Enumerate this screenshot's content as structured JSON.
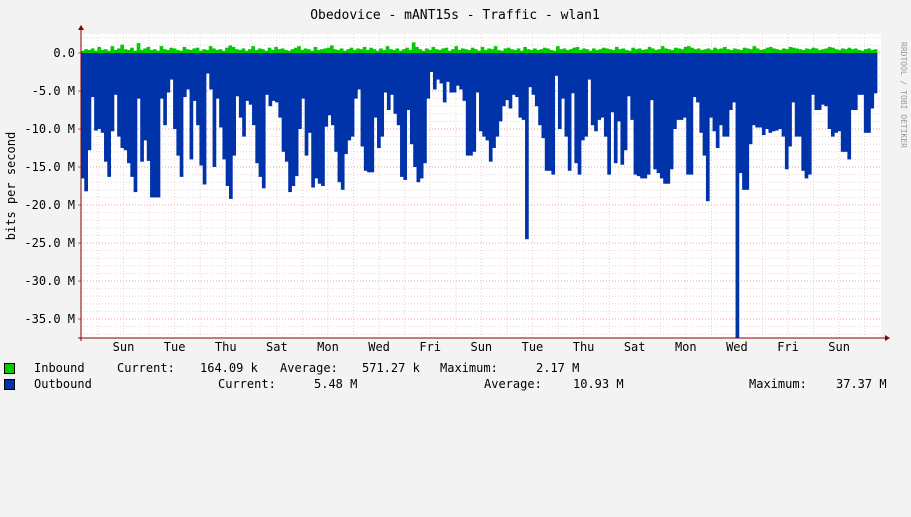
{
  "chart_data": {
    "type": "area",
    "title": "Obedovice - mANT15s - Traffic - wlan1",
    "ylabel": "bits per second",
    "watermark": "RRDTOOL / TOBI OETIKER",
    "ylim": [
      -37500000,
      2500000
    ],
    "yticks": [
      {
        "value": 0,
        "label": "0.0"
      },
      {
        "value": -5000000,
        "label": "-5.0 M"
      },
      {
        "value": -10000000,
        "label": "-10.0 M"
      },
      {
        "value": -15000000,
        "label": "-15.0 M"
      },
      {
        "value": -20000000,
        "label": "-20.0 M"
      },
      {
        "value": -25000000,
        "label": "-25.0 M"
      },
      {
        "value": -30000000,
        "label": "-30.0 M"
      },
      {
        "value": -35000000,
        "label": "-35.0 M"
      }
    ],
    "xlabels": [
      "Sun",
      "Tue",
      "Thu",
      "Sat",
      "Mon",
      "Wed",
      "Fri",
      "Sun",
      "Tue",
      "Thu",
      "Sat",
      "Mon",
      "Wed",
      "Fri",
      "Sun"
    ],
    "grid": true,
    "colors": {
      "inbound": "#00cc00",
      "outbound": "#0033aa",
      "grid": "#ff9999",
      "axis": "#880000"
    },
    "series": [
      {
        "name": "Inbound",
        "values": [
          0.3,
          0.5,
          0.4,
          0.6,
          0.3,
          0.8,
          0.4,
          0.5,
          0.3,
          0.9,
          0.4,
          0.6,
          1.1,
          0.5,
          0.4,
          0.7,
          0.3,
          1.3,
          0.4,
          0.6,
          0.8,
          0.4,
          0.5,
          0.3,
          0.9,
          0.5,
          0.4,
          0.7,
          0.6,
          0.4,
          0.3,
          0.8,
          0.5,
          0.4,
          0.6,
          0.7,
          0.3,
          0.5,
          0.4,
          0.9,
          0.6,
          0.4,
          0.5,
          0.3,
          0.7,
          1.0,
          0.8,
          0.5,
          0.4,
          0.6,
          0.3,
          0.5,
          0.9,
          0.4,
          0.6,
          0.5,
          0.3,
          0.7,
          0.4,
          0.8,
          0.5,
          0.6,
          0.4,
          0.3,
          0.5,
          0.7,
          0.9,
          0.4,
          0.6,
          0.5,
          0.3,
          0.8,
          0.4,
          0.5,
          0.6,
          0.7,
          1.0,
          0.5,
          0.4,
          0.6,
          0.3,
          0.5,
          0.7,
          0.4,
          0.6,
          0.5,
          0.8,
          0.4,
          0.7,
          0.5,
          0.3,
          0.6,
          0.4,
          0.9,
          0.5,
          0.4,
          0.6,
          0.3,
          0.5,
          0.7,
          0.4,
          1.4,
          0.8,
          0.5,
          0.3,
          0.6,
          0.4,
          0.8,
          0.5,
          0.4,
          0.6,
          0.7,
          0.3,
          0.5,
          0.9,
          0.4,
          0.6,
          0.5,
          0.4,
          0.7,
          0.5,
          0.3,
          0.8,
          0.4,
          0.6,
          0.5,
          0.9,
          0.4,
          0.3,
          0.6,
          0.7,
          0.5,
          0.4,
          0.6,
          0.3,
          0.8,
          0.5,
          0.4,
          0.6,
          0.4,
          0.5,
          0.7,
          0.6,
          0.4,
          0.3,
          0.9,
          0.5,
          0.6,
          0.4,
          0.5,
          0.7,
          0.8,
          0.4,
          0.6,
          0.5,
          0.3,
          0.6,
          0.4,
          0.5,
          0.7,
          0.6,
          0.5,
          0.4,
          0.8,
          0.5,
          0.6,
          0.4,
          0.3,
          0.7,
          0.5,
          0.6,
          0.4,
          0.5,
          0.8,
          0.6,
          0.4,
          0.5,
          0.9,
          0.6,
          0.5,
          0.4,
          0.7,
          0.6,
          0.5,
          0.8,
          0.9,
          0.7,
          0.5,
          0.6,
          0.4,
          0.5,
          0.6,
          0.4,
          0.7,
          0.5,
          0.6,
          0.8,
          0.5,
          0.4,
          0.6,
          0.5,
          0.4,
          0.7,
          0.6,
          0.5,
          0.9,
          0.6,
          0.4,
          0.5,
          0.7,
          0.8,
          0.6,
          0.5,
          0.4,
          0.6,
          0.5,
          0.8,
          0.7,
          0.6,
          0.5,
          0.4,
          0.6,
          0.5,
          0.7,
          0.6,
          0.4,
          0.5,
          0.6,
          0.8,
          0.7,
          0.5,
          0.4,
          0.6,
          0.5,
          0.7,
          0.5,
          0.6,
          0.4,
          0.3,
          0.5,
          0.6,
          0.4,
          0.5
        ]
      },
      {
        "name": "Outbound",
        "values": [
          -16.5,
          -18.2,
          -12.8,
          -5.8,
          -10.2,
          -10.0,
          -10.5,
          -14.3,
          -16.3,
          -10.3,
          -5.5,
          -11.0,
          -12.5,
          -12.8,
          -14.5,
          -16.3,
          -18.3,
          -6.0,
          -14.3,
          -11.5,
          -14.2,
          -19.0,
          -19.0,
          -19.0,
          -6.0,
          -9.5,
          -5.2,
          -3.5,
          -10.0,
          -13.5,
          -16.3,
          -5.8,
          -4.8,
          -14.0,
          -6.3,
          -9.5,
          -14.8,
          -17.3,
          -2.7,
          -4.8,
          -15.0,
          -6.0,
          -9.8,
          -14.0,
          -17.5,
          -19.2,
          -13.5,
          -5.7,
          -8.5,
          -11.0,
          -6.3,
          -6.8,
          -9.5,
          -14.5,
          -16.3,
          -17.8,
          -5.5,
          -7.0,
          -6.3,
          -6.5,
          -8.5,
          -13.0,
          -14.3,
          -18.3,
          -17.5,
          -16.2,
          -10.0,
          -6.0,
          -13.5,
          -10.5,
          -17.7,
          -16.5,
          -17.2,
          -17.5,
          -9.7,
          -8.2,
          -9.5,
          -13.0,
          -17.0,
          -18.0,
          -13.3,
          -11.5,
          -11.0,
          -6.0,
          -4.8,
          -12.3,
          -15.5,
          -15.7,
          -15.7,
          -8.5,
          -12.5,
          -11.0,
          -5.2,
          -7.5,
          -5.5,
          -8.0,
          -9.5,
          -16.3,
          -16.7,
          -7.5,
          -12.0,
          -15.0,
          -17.0,
          -16.5,
          -14.5,
          -6.0,
          -2.5,
          -4.8,
          -3.5,
          -4.0,
          -6.5,
          -3.8,
          -5.2,
          -5.2,
          -4.3,
          -4.8,
          -6.3,
          -13.5,
          -13.5,
          -13.0,
          -5.2,
          -10.3,
          -11.0,
          -11.5,
          -14.3,
          -12.5,
          -11.0,
          -9.0,
          -7.0,
          -6.2,
          -7.3,
          -5.5,
          -5.8,
          -8.5,
          -8.8,
          -24.5,
          -4.5,
          -5.5,
          -7.0,
          -9.5,
          -11.2,
          -15.5,
          -15.5,
          -16.0,
          -3.0,
          -10.0,
          -6.0,
          -11.0,
          -15.5,
          -5.3,
          -14.5,
          -16.0,
          -11.5,
          -11.0,
          -3.5,
          -9.5,
          -10.3,
          -8.8,
          -8.5,
          -11.0,
          -16.0,
          -7.8,
          -14.5,
          -9.0,
          -14.7,
          -12.8,
          -5.7,
          -8.8,
          -16.0,
          -16.2,
          -16.5,
          -16.5,
          -16.0,
          -6.2,
          -15.3,
          -15.8,
          -16.5,
          -17.2,
          -17.2,
          -15.3,
          -10.0,
          -8.8,
          -8.8,
          -8.5,
          -16.0,
          -16.0,
          -5.8,
          -6.5,
          -10.5,
          -13.5,
          -19.5,
          -8.5,
          -10.3,
          -12.5,
          -9.5,
          -11.0,
          -11.0,
          -7.5,
          -6.5,
          -37.5,
          -15.8,
          -18.0,
          -18.0,
          -12.0,
          -9.5,
          -9.8,
          -9.8,
          -10.8,
          -10.0,
          -10.5,
          -10.3,
          -10.2,
          -10.0,
          -11.0,
          -15.3,
          -12.3,
          -6.5,
          -11.0,
          -11.0,
          -15.5,
          -16.5,
          -16.0,
          -5.5,
          -7.5,
          -7.5,
          -6.8,
          -7.0,
          -10.0,
          -11.0,
          -10.5,
          -10.3,
          -13.0,
          -13.0,
          -14.0,
          -7.5,
          -7.5,
          -5.5,
          -5.5,
          -10.5,
          -10.5,
          -7.3,
          -5.3
        ]
      }
    ],
    "legend": [
      {
        "name": "Inbound",
        "current_label": "Current:",
        "current": "164.09 k",
        "average_label": "Average:",
        "average": "571.27 k",
        "maximum_label": "Maximum:",
        "maximum": "2.17 M"
      },
      {
        "name": "Outbound",
        "current_label": "Current:",
        "current": "5.48 M",
        "average_label": "Average:",
        "average": "10.93 M",
        "maximum_label": "Maximum:",
        "maximum": "37.37 M"
      }
    ]
  }
}
